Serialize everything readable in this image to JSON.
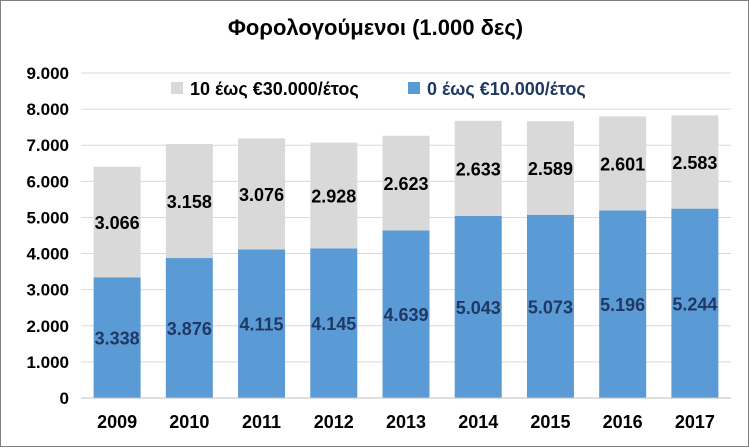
{
  "colors": {
    "series_top": "#d9d9d9",
    "series_bottom": "#5b9bd5",
    "label_top": "#000000",
    "label_bottom": "#1f3864",
    "gridline": "#d9d9d9",
    "legend_top_text": "#000000",
    "legend_bottom_text": "#1f3864"
  },
  "chart_data": {
    "type": "bar",
    "stacked": true,
    "title": "Φορολογούμενοι (1.000 δες)",
    "xlabel": "",
    "ylabel": "",
    "categories": [
      "2009",
      "2010",
      "2011",
      "2012",
      "2013",
      "2014",
      "2015",
      "2016",
      "2017"
    ],
    "series": [
      {
        "name": "0 έως €10.000/έτος",
        "values": [
          3338,
          3876,
          4115,
          4145,
          4639,
          5043,
          5073,
          5196,
          5244
        ],
        "labels": [
          "3.338",
          "3.876",
          "4.115",
          "4.145",
          "4.639",
          "5.043",
          "5.073",
          "5.196",
          "5.244"
        ]
      },
      {
        "name": "10 έως €30.000/έτος",
        "values": [
          3066,
          3158,
          3076,
          2928,
          2623,
          2633,
          2589,
          2601,
          2583
        ],
        "labels": [
          "3.066",
          "3.158",
          "3.076",
          "2.928",
          "2.623",
          "2.633",
          "2.589",
          "2.601",
          "2.583"
        ]
      }
    ],
    "ylim": [
      0,
      9000
    ],
    "yticks": [
      0,
      1000,
      2000,
      3000,
      4000,
      5000,
      6000,
      7000,
      8000,
      9000
    ],
    "ytick_labels": [
      "0",
      "1.000",
      "2.000",
      "3.000",
      "4.000",
      "5.000",
      "6.000",
      "7.000",
      "8.000",
      "9.000"
    ],
    "grid": true,
    "legend": [
      "10 έως €30.000/έτος",
      "0 έως €10.000/έτος"
    ],
    "legend_position": "top"
  }
}
